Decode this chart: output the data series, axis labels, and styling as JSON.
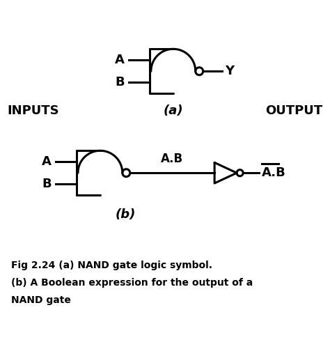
{
  "bg_color": "#ffffff",
  "line_color": "#000000",
  "line_width": 2.2,
  "fig_width": 4.74,
  "fig_height": 5.01,
  "label_a": "A",
  "label_b": "B",
  "label_y": "Y",
  "label_inputs": "INPUTS",
  "label_output": "OUTPUT",
  "label_ab": "A.B",
  "label_ab_bar": "A.B",
  "diagram_a_label": "(a)",
  "diagram_b_label": "(b)",
  "caption_line1": "Fig 2.24 (a) NAND gate logic symbol.",
  "caption_line2": "(b) A Boolean expression for the output of a",
  "caption_line3": "NAND gate"
}
